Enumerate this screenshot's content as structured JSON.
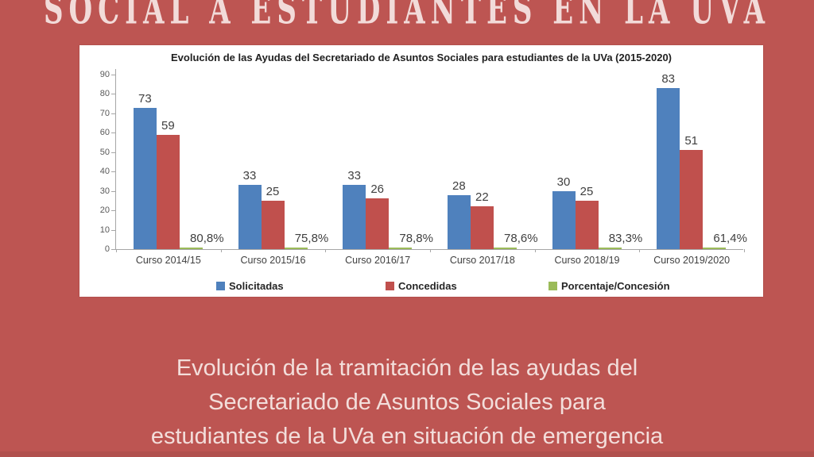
{
  "header": {
    "title": "SOCIAL A ESTUDIANTES EN LA UVA"
  },
  "caption": {
    "lines": [
      "Evolución de la tramitación de las ayudas del",
      "Secretariado de Asuntos Sociales para",
      "estudiantes de la UVa en situación de emergencia"
    ]
  },
  "colors": {
    "background": "#bd5552",
    "bottom_strip": "#b1504d",
    "panel": "#ffffff",
    "heading_text": "#f2dbd9",
    "caption_text": "#f3dedb",
    "axis": "#a6a6a6",
    "chart_label": "#3f3f3f",
    "bar_blue": "#4f81bd",
    "bar_red": "#c0504d",
    "bar_green": "#9bbb59"
  },
  "chart_data": {
    "type": "bar",
    "title": "Evolución de las Ayudas del Secretariado de Asuntos Sociales para estudiantes de la UVa (2015-2020)",
    "categories": [
      "Curso 2014/15",
      "Curso 2015/16",
      "Curso 2016/17",
      "Curso 2017/18",
      "Curso 2018/19",
      "Curso 2019/2020"
    ],
    "series": [
      {
        "name": "Solicitadas",
        "color": "#4f81bd",
        "values": [
          73,
          33,
          33,
          28,
          30,
          83
        ]
      },
      {
        "name": "Concedidas",
        "color": "#c0504d",
        "values": [
          59,
          25,
          26,
          22,
          25,
          51
        ]
      },
      {
        "name": "Porcentaje/Concesión",
        "color": "#9bbb59",
        "values": [
          0.808,
          0.758,
          0.788,
          0.786,
          0.833,
          0.614
        ],
        "labels": [
          "80,8%",
          "75,8%",
          "78,8%",
          "78,6%",
          "83,3%",
          "61,4%"
        ]
      }
    ],
    "xlabel": "",
    "ylabel": "",
    "ylim": [
      0,
      90
    ],
    "yticks": [
      0,
      10,
      20,
      30,
      40,
      50,
      60,
      70,
      80,
      90
    ],
    "grid": false,
    "legend_position": "bottom"
  }
}
